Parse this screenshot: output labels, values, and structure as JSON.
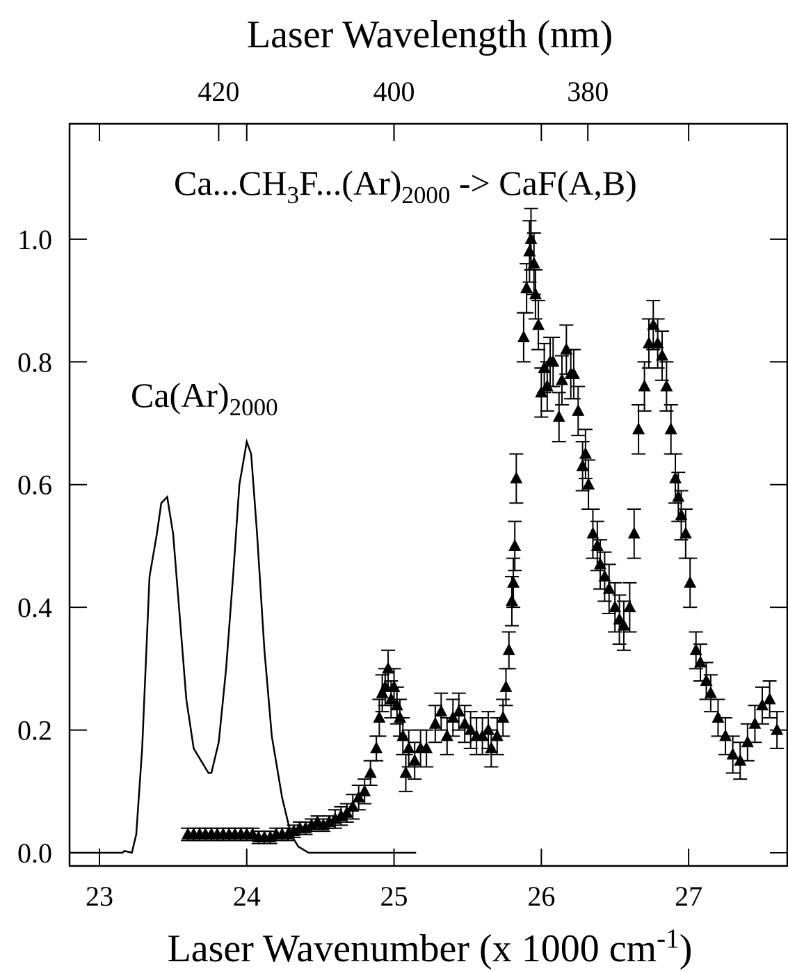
{
  "chart_data": {
    "type": "scatter",
    "x_label_parts": [
      "Laser Wavenumber (x 1000 cm",
      "-1",
      ")"
    ],
    "x2_label": "Laser Wavelength (nm)",
    "annotations": [
      {
        "parts": [
          "Ca...CH",
          "3",
          "F...(Ar)",
          "2000",
          " -> CaF(A,B)"
        ]
      },
      {
        "parts": [
          "Ca(Ar)",
          "2000"
        ]
      }
    ],
    "xlim": [
      22.797,
      27.67
    ],
    "ylim": [
      -0.0215,
      1.188
    ],
    "xticks": [
      23,
      24,
      25,
      26,
      27
    ],
    "x2ticks": [
      420,
      400,
      380
    ],
    "yticks": [
      {
        "value": 0,
        "label": "0.0"
      },
      {
        "value": 0.2,
        "label": "0.2"
      },
      {
        "value": 0.4,
        "label": "0.4"
      },
      {
        "value": 0.6,
        "label": "0.6"
      },
      {
        "value": 0.8,
        "label": "0.8"
      },
      {
        "value": 1,
        "label": "1.0"
      }
    ],
    "series": [
      {
        "type": "line",
        "color": "#000000",
        "x": [
          22.797,
          23.156,
          23.17,
          23.22,
          23.25,
          23.29,
          23.34,
          23.39,
          23.42,
          23.46,
          23.5,
          23.54,
          23.59,
          23.64,
          23.69,
          23.74,
          23.76,
          23.81,
          23.86,
          23.91,
          23.95,
          24.0,
          24.03,
          24.07,
          24.12,
          24.17,
          24.24,
          24.3,
          24.35,
          24.42,
          24.54,
          25.15
        ],
        "values": [
          0,
          0,
          0.003,
          0,
          0.03,
          0.17,
          0.45,
          0.52,
          0.57,
          0.58,
          0.52,
          0.4,
          0.25,
          0.17,
          0.15,
          0.13,
          0.13,
          0.18,
          0.3,
          0.46,
          0.6,
          0.67,
          0.65,
          0.52,
          0.33,
          0.19,
          0.09,
          0.03,
          0.01,
          0,
          0,
          0
        ]
      },
      {
        "type": "errorbar",
        "color": "#000000",
        "marker": "triangle",
        "x": [
          23.6,
          23.64,
          23.68,
          23.72,
          23.76,
          23.8,
          23.84,
          23.88,
          23.92,
          23.96,
          24.0,
          24.04,
          24.08,
          24.12,
          24.16,
          24.2,
          24.24,
          24.28,
          24.32,
          24.36,
          24.4,
          24.44,
          24.48,
          24.52,
          24.56,
          24.6,
          24.64,
          24.68,
          24.72,
          24.76,
          24.8,
          24.84,
          24.88,
          24.9,
          24.92,
          24.94,
          24.96,
          24.98,
          25.0,
          25.02,
          25.04,
          25.06,
          25.08,
          25.1,
          25.14,
          25.18,
          25.22,
          25.28,
          25.32,
          25.36,
          25.4,
          25.44,
          25.48,
          25.52,
          25.56,
          25.6,
          25.64,
          25.66,
          25.7,
          25.74,
          25.76,
          25.78,
          25.8,
          25.81,
          25.82,
          25.83,
          25.88,
          25.9,
          25.92,
          25.93,
          25.95,
          25.96,
          25.98,
          26.0,
          26.02,
          26.04,
          26.06,
          26.08,
          26.12,
          26.14,
          26.17,
          26.2,
          26.22,
          26.25,
          26.28,
          26.3,
          26.32,
          26.35,
          26.38,
          26.4,
          26.43,
          26.46,
          26.5,
          26.53,
          26.56,
          26.6,
          26.63,
          26.66,
          26.7,
          26.73,
          26.76,
          26.79,
          26.82,
          26.85,
          26.88,
          26.91,
          26.93,
          26.95,
          26.98,
          27.01,
          27.05,
          27.08,
          27.12,
          27.15,
          27.2,
          27.25,
          27.3,
          27.35,
          27.4,
          27.45,
          27.5,
          27.55,
          27.6
        ],
        "values": [
          0.03,
          0.03,
          0.03,
          0.03,
          0.03,
          0.03,
          0.03,
          0.03,
          0.03,
          0.03,
          0.03,
          0.03,
          0.025,
          0.025,
          0.025,
          0.03,
          0.03,
          0.03,
          0.035,
          0.04,
          0.04,
          0.045,
          0.05,
          0.045,
          0.05,
          0.055,
          0.06,
          0.065,
          0.075,
          0.09,
          0.1,
          0.13,
          0.17,
          0.22,
          0.26,
          0.27,
          0.3,
          0.25,
          0.27,
          0.24,
          0.22,
          0.19,
          0.13,
          0.17,
          0.15,
          0.17,
          0.17,
          0.21,
          0.23,
          0.19,
          0.22,
          0.23,
          0.21,
          0.2,
          0.19,
          0.19,
          0.2,
          0.17,
          0.19,
          0.22,
          0.27,
          0.33,
          0.41,
          0.44,
          0.5,
          0.61,
          0.84,
          0.92,
          0.98,
          1.0,
          0.96,
          0.91,
          0.86,
          0.75,
          0.79,
          0.76,
          0.8,
          0.8,
          0.71,
          0.77,
          0.82,
          0.78,
          0.78,
          0.72,
          0.63,
          0.65,
          0.6,
          0.52,
          0.5,
          0.47,
          0.45,
          0.43,
          0.4,
          0.38,
          0.37,
          0.4,
          0.52,
          0.69,
          0.76,
          0.83,
          0.86,
          0.83,
          0.81,
          0.76,
          0.69,
          0.61,
          0.58,
          0.55,
          0.52,
          0.44,
          0.33,
          0.31,
          0.28,
          0.26,
          0.22,
          0.19,
          0.16,
          0.15,
          0.18,
          0.21,
          0.24,
          0.25,
          0.2
        ],
        "errors": [
          0.01,
          0.01,
          0.01,
          0.01,
          0.01,
          0.01,
          0.01,
          0.01,
          0.01,
          0.01,
          0.01,
          0.01,
          0.01,
          0.01,
          0.01,
          0.01,
          0.01,
          0.01,
          0.01,
          0.01,
          0.01,
          0.01,
          0.01,
          0.01,
          0.01,
          0.015,
          0.015,
          0.015,
          0.02,
          0.02,
          0.02,
          0.02,
          0.02,
          0.03,
          0.03,
          0.03,
          0.03,
          0.03,
          0.03,
          0.03,
          0.03,
          0.03,
          0.03,
          0.03,
          0.03,
          0.03,
          0.03,
          0.03,
          0.03,
          0.03,
          0.03,
          0.03,
          0.03,
          0.03,
          0.03,
          0.03,
          0.03,
          0.03,
          0.03,
          0.03,
          0.03,
          0.03,
          0.04,
          0.04,
          0.04,
          0.04,
          0.04,
          0.04,
          0.05,
          0.05,
          0.05,
          0.04,
          0.04,
          0.04,
          0.04,
          0.04,
          0.04,
          0.04,
          0.04,
          0.04,
          0.04,
          0.04,
          0.04,
          0.04,
          0.04,
          0.04,
          0.04,
          0.04,
          0.04,
          0.04,
          0.04,
          0.04,
          0.04,
          0.04,
          0.04,
          0.04,
          0.04,
          0.04,
          0.04,
          0.04,
          0.04,
          0.04,
          0.04,
          0.04,
          0.04,
          0.04,
          0.04,
          0.04,
          0.04,
          0.04,
          0.03,
          0.03,
          0.03,
          0.03,
          0.03,
          0.03,
          0.03,
          0.03,
          0.03,
          0.03,
          0.03,
          0.03,
          0.03
        ]
      }
    ]
  }
}
